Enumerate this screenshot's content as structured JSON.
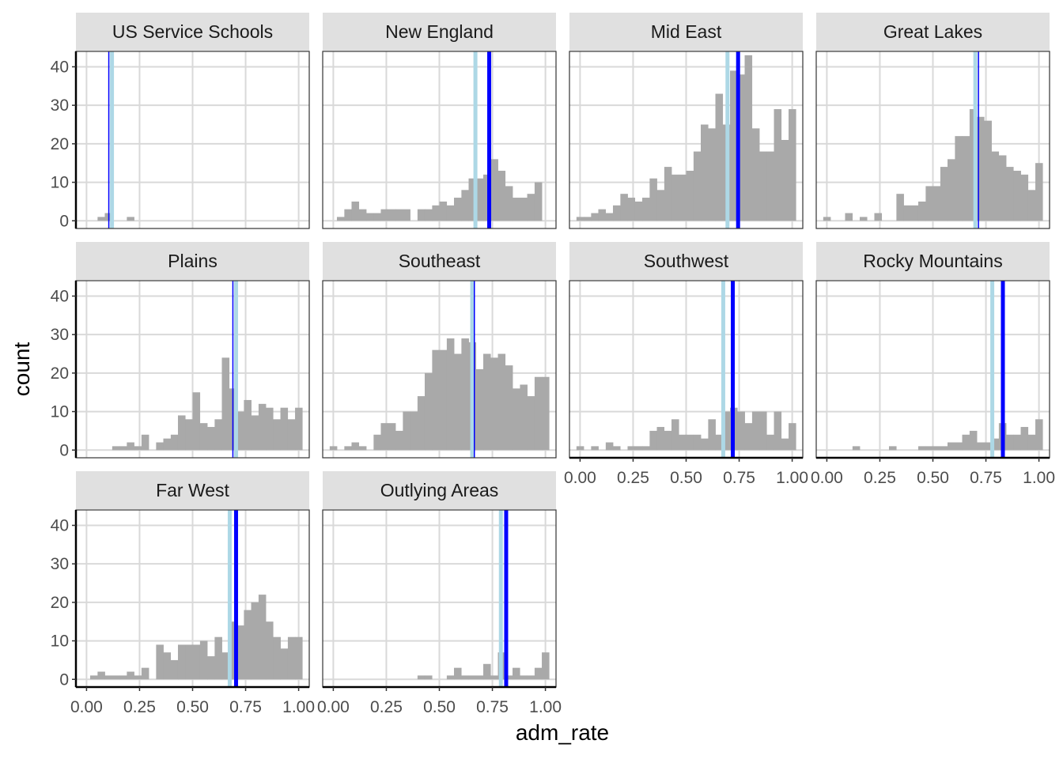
{
  "chart_data": {
    "type": "bar",
    "subtype": "faceted-histogram",
    "xlabel": "adm_rate",
    "ylabel": "count",
    "xlim": [
      -0.05,
      1.05
    ],
    "ylim": [
      -2,
      44
    ],
    "x_ticks": [
      0,
      0.25,
      0.5,
      0.75,
      1
    ],
    "x_tick_labels": [
      "0.00",
      "0.25",
      "0.50",
      "0.75",
      "1.00"
    ],
    "y_ticks": [
      0,
      10,
      20,
      30,
      40
    ],
    "y_tick_labels": [
      "0",
      "10",
      "20",
      "30",
      "40"
    ],
    "bin_width": 0.0345,
    "grid": true,
    "colors": {
      "bars": "#a9a9a9",
      "mean_line": "#add8e6",
      "median_line": "#0000ff",
      "strip_bg": "#e0e0e0",
      "grid": "#d9d9d9"
    },
    "panels": [
      {
        "name": "US Service Schools",
        "bin_starts": [
          0.052,
          0.086,
          0.19
        ],
        "counts": [
          1,
          2,
          1
        ],
        "light_line": 0.12,
        "dark_line": 0.105
      },
      {
        "name": "New England",
        "bin_starts": [
          0.017,
          0.052,
          0.086,
          0.121,
          0.155,
          0.19,
          0.224,
          0.259,
          0.293,
          0.328,
          0.362,
          0.397,
          0.431,
          0.466,
          0.5,
          0.535,
          0.569,
          0.604,
          0.638,
          0.673,
          0.707,
          0.742,
          0.776,
          0.811,
          0.845,
          0.88,
          0.914,
          0.949,
          0.983
        ],
        "counts": [
          1,
          3,
          5,
          3,
          2,
          2,
          3,
          3,
          3,
          3,
          0,
          3,
          3,
          4,
          5,
          4,
          6,
          8,
          11,
          11,
          12,
          16,
          13,
          9,
          6,
          6,
          7,
          10,
          0
        ],
        "light_line": 0.67,
        "dark_line": 0.735
      },
      {
        "name": "Mid East",
        "bin_starts": [
          -0.017,
          0.017,
          0.052,
          0.086,
          0.121,
          0.155,
          0.19,
          0.224,
          0.259,
          0.293,
          0.328,
          0.362,
          0.397,
          0.431,
          0.466,
          0.5,
          0.535,
          0.569,
          0.604,
          0.638,
          0.673,
          0.707,
          0.742,
          0.776,
          0.811,
          0.845,
          0.88,
          0.914,
          0.949,
          0.983
        ],
        "counts": [
          1,
          1,
          2,
          3,
          2,
          4,
          7,
          6,
          5,
          6,
          11,
          8,
          14,
          12,
          12,
          13,
          18,
          25,
          24,
          33,
          25,
          39,
          38,
          43,
          24,
          18,
          18,
          29,
          21,
          29
        ],
        "light_line": 0.695,
        "dark_line": 0.745
      },
      {
        "name": "Great Lakes",
        "bin_starts": [
          -0.017,
          0.017,
          0.052,
          0.086,
          0.121,
          0.155,
          0.19,
          0.224,
          0.259,
          0.293,
          0.328,
          0.362,
          0.397,
          0.431,
          0.466,
          0.5,
          0.535,
          0.569,
          0.604,
          0.638,
          0.673,
          0.707,
          0.742,
          0.776,
          0.811,
          0.845,
          0.88,
          0.914,
          0.949,
          0.983
        ],
        "counts": [
          1,
          0,
          0,
          2,
          0,
          1,
          0,
          2,
          0,
          0,
          7,
          4,
          4,
          5,
          9,
          9,
          14,
          16,
          22,
          22,
          29,
          27,
          26,
          18,
          17,
          14,
          13,
          12,
          8,
          15
        ],
        "light_line": 0.7,
        "dark_line": 0.715
      },
      {
        "name": "Plains",
        "bin_starts": [
          0.121,
          0.155,
          0.19,
          0.224,
          0.259,
          0.293,
          0.328,
          0.362,
          0.397,
          0.431,
          0.466,
          0.5,
          0.535,
          0.569,
          0.604,
          0.638,
          0.673,
          0.707,
          0.742,
          0.776,
          0.811,
          0.845,
          0.88,
          0.914,
          0.949,
          0.983
        ],
        "counts": [
          1,
          1,
          2,
          1,
          4,
          0,
          2,
          3,
          4,
          9,
          8,
          15,
          7,
          6,
          8,
          24,
          16,
          10,
          13,
          9,
          12,
          11,
          8,
          11,
          8,
          11
        ],
        "light_line": 0.705,
        "dark_line": 0.69
      },
      {
        "name": "Southeast",
        "bin_starts": [
          -0.017,
          0.017,
          0.052,
          0.086,
          0.121,
          0.155,
          0.19,
          0.224,
          0.259,
          0.293,
          0.328,
          0.362,
          0.397,
          0.431,
          0.466,
          0.5,
          0.535,
          0.569,
          0.604,
          0.638,
          0.673,
          0.707,
          0.742,
          0.776,
          0.811,
          0.845,
          0.88,
          0.914,
          0.949,
          0.983
        ],
        "counts": [
          1,
          0,
          1,
          2,
          1,
          0,
          4,
          7,
          7,
          5,
          10,
          10,
          14,
          20,
          26,
          26,
          29,
          25,
          29,
          28,
          21,
          25,
          24,
          25,
          22,
          16,
          17,
          14,
          19,
          19
        ],
        "light_line": 0.655,
        "dark_line": 0.665
      },
      {
        "name": "Southwest",
        "bin_starts": [
          -0.017,
          0.017,
          0.052,
          0.086,
          0.121,
          0.155,
          0.19,
          0.224,
          0.259,
          0.293,
          0.328,
          0.362,
          0.397,
          0.431,
          0.466,
          0.5,
          0.535,
          0.569,
          0.604,
          0.638,
          0.673,
          0.707,
          0.742,
          0.776,
          0.811,
          0.845,
          0.88,
          0.914,
          0.949,
          0.983
        ],
        "counts": [
          1,
          0,
          1,
          0,
          2,
          1,
          0,
          1,
          1,
          1,
          5,
          6,
          5,
          8,
          4,
          4,
          4,
          3,
          8,
          4,
          10,
          11,
          10,
          7,
          10,
          10,
          4,
          10,
          3,
          7
        ],
        "light_line": 0.675,
        "dark_line": 0.72
      },
      {
        "name": "Rocky Mountains",
        "bin_starts": [
          0.121,
          0.293,
          0.431,
          0.466,
          0.5,
          0.535,
          0.569,
          0.604,
          0.638,
          0.673,
          0.707,
          0.742,
          0.776,
          0.811,
          0.845,
          0.88,
          0.914,
          0.949,
          0.983
        ],
        "counts": [
          1,
          1,
          1,
          1,
          1,
          1,
          2,
          2,
          4,
          5,
          2,
          2,
          3,
          7,
          4,
          4,
          6,
          4,
          8
        ],
        "light_line": 0.78,
        "dark_line": 0.83
      },
      {
        "name": "Far West",
        "bin_starts": [
          0.017,
          0.052,
          0.086,
          0.121,
          0.155,
          0.19,
          0.224,
          0.259,
          0.293,
          0.328,
          0.362,
          0.397,
          0.431,
          0.466,
          0.5,
          0.535,
          0.569,
          0.604,
          0.638,
          0.673,
          0.707,
          0.742,
          0.776,
          0.811,
          0.845,
          0.88,
          0.914,
          0.949,
          0.983
        ],
        "counts": [
          1,
          2,
          1,
          1,
          1,
          2,
          1,
          3,
          0,
          9,
          7,
          5,
          9,
          9,
          9,
          10,
          6,
          11,
          7,
          15,
          14,
          18,
          20,
          22,
          15,
          11,
          8,
          11,
          11
        ],
        "light_line": 0.675,
        "dark_line": 0.705
      },
      {
        "name": "Outlying Areas",
        "bin_starts": [
          0.397,
          0.431,
          0.535,
          0.569,
          0.604,
          0.638,
          0.673,
          0.707,
          0.742,
          0.776,
          0.811,
          0.845,
          0.88,
          0.914,
          0.949,
          0.983
        ],
        "counts": [
          1,
          1,
          1,
          3,
          1,
          1,
          1,
          4,
          1,
          7,
          1,
          3,
          1,
          1,
          3,
          7
        ],
        "light_line": 0.79,
        "dark_line": 0.815
      }
    ]
  }
}
